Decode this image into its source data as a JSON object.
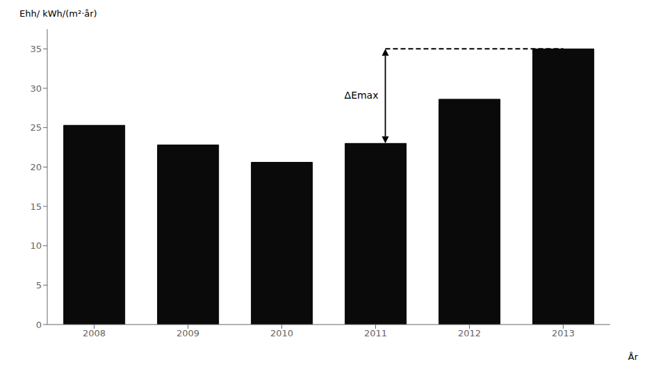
{
  "chart_data": {
    "type": "bar",
    "categories": [
      "2008",
      "2009",
      "2010",
      "2011",
      "2012",
      "2013"
    ],
    "values": [
      25.3,
      22.8,
      20.6,
      23.0,
      28.6,
      35.0
    ],
    "color": "#0a0a0a",
    "ylabel": "Ehh/ kWh/(m²·år)",
    "xlabel": "År",
    "ylim": [
      0,
      37.5
    ],
    "yticks": [
      0,
      5,
      10,
      15,
      20,
      25,
      30,
      35
    ],
    "grid": false,
    "annotation": {
      "text": "ΔEmax",
      "category": "2011",
      "y_from": 23.0,
      "y_to": 35.0
    },
    "dashed_line": {
      "y": 35.0,
      "from_category": "2011",
      "to_category": "2013"
    }
  }
}
